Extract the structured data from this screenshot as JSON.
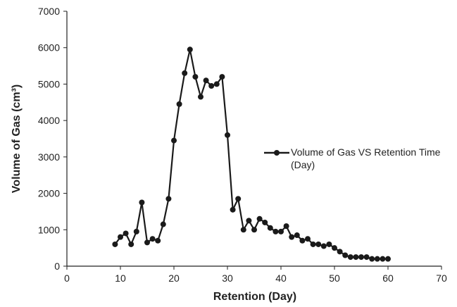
{
  "chart_data": {
    "type": "line",
    "x_label": "Retention (Day)",
    "y_label": "Volume of Gas (cm³)",
    "x": [
      9,
      10,
      11,
      12,
      13,
      14,
      15,
      16,
      17,
      18,
      19,
      20,
      21,
      22,
      23,
      24,
      25,
      26,
      27,
      28,
      29,
      30,
      31,
      32,
      33,
      34,
      35,
      36,
      37,
      38,
      39,
      40,
      41,
      42,
      43,
      44,
      45,
      46,
      47,
      48,
      49,
      50,
      51,
      52,
      53,
      54,
      55,
      56,
      57,
      58,
      59,
      60
    ],
    "series": [
      {
        "name": "Volume of Gas VS Retention Time (Day)",
        "color": "#1a1a1a",
        "values": [
          600,
          800,
          900,
          600,
          950,
          1750,
          650,
          750,
          700,
          1150,
          1850,
          3450,
          4450,
          5300,
          5950,
          5200,
          4650,
          5100,
          4950,
          5000,
          5200,
          3600,
          1550,
          1850,
          1000,
          1250,
          1000,
          1300,
          1200,
          1050,
          950,
          950,
          1100,
          800,
          850,
          700,
          750,
          600,
          600,
          550,
          600,
          500,
          400,
          300,
          250,
          250,
          250,
          250,
          200,
          200,
          200,
          200
        ]
      }
    ],
    "xlim": [
      0,
      70
    ],
    "xticks": [
      0,
      10,
      20,
      30,
      40,
      50,
      60,
      70
    ],
    "ylim": [
      0,
      7000
    ],
    "yticks": [
      0,
      1000,
      2000,
      3000,
      4000,
      5000,
      6000,
      7000
    ],
    "grid": false
  }
}
